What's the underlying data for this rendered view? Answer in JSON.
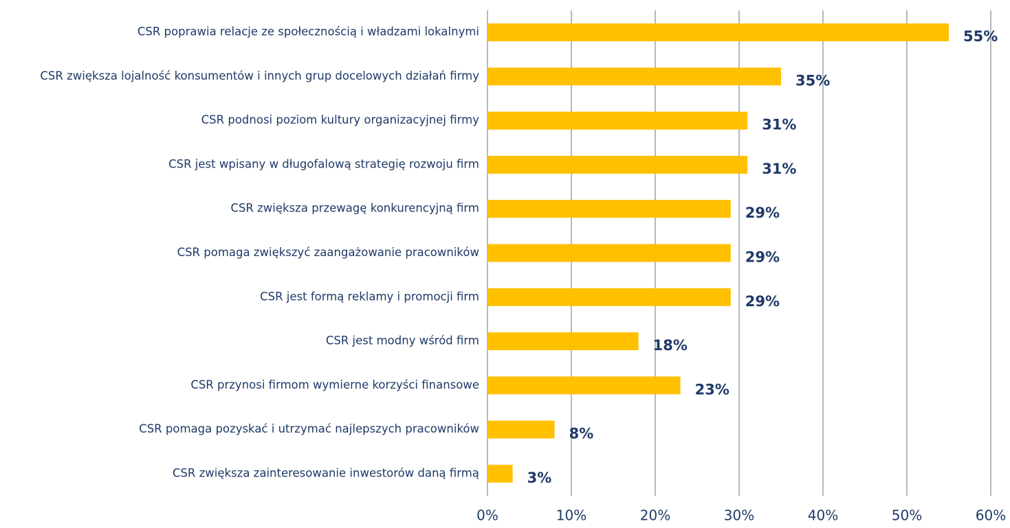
{
  "chart_data": {
    "type": "bar",
    "orientation": "horizontal",
    "categories": [
      "CSR poprawia relacje ze społecznością i władzami lokalnymi",
      "CSR zwiększa lojalność konsumentów i innych grup docelowych działań firmy",
      "CSR podnosi poziom kultury organizacyjnej firmy",
      "CSR jest wpisany w długofalową strategię rozwoju firm",
      "CSR zwiększa przewagę konkurencyjną firm",
      "CSR pomaga zwiększyć zaangażowanie pracowników",
      "CSR jest formą reklamy i promocji firm",
      "CSR jest modny wśród firm",
      "CSR przynosi firmom wymierne korzyści finansowe",
      "CSR pomaga pozyskać i utrzymać najlepszych pracowników",
      "CSR zwiększa zainteresowanie inwestorów daną firmą"
    ],
    "values": [
      55,
      35,
      31,
      31,
      29,
      29,
      29,
      18,
      23,
      8,
      3
    ],
    "value_labels": [
      "55%",
      "35%",
      "31%",
      "31%",
      "29%",
      "29%",
      "29%",
      "18%",
      "23%",
      "8%",
      "3%"
    ],
    "color": "#ffc000",
    "xlim": [
      0,
      60
    ],
    "xticks": [
      {
        "value": 0,
        "label": "0%"
      },
      {
        "value": 10,
        "label": "10%"
      },
      {
        "value": 20,
        "label": "20%"
      },
      {
        "value": 30,
        "label": "30%"
      },
      {
        "value": 40,
        "label": "40%"
      },
      {
        "value": 50,
        "label": "50%"
      },
      {
        "value": 60,
        "label": "60%"
      }
    ],
    "grid": true
  }
}
